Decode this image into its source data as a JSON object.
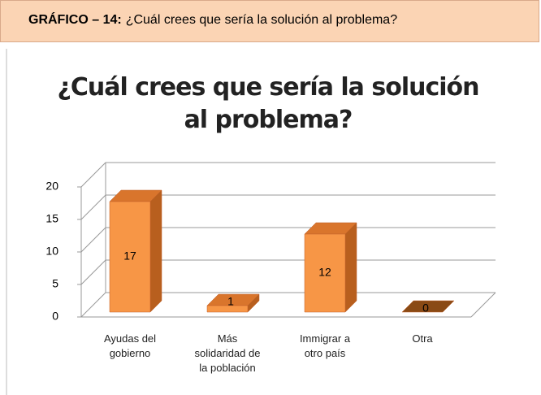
{
  "header": {
    "label": "GRÁFICO – 14:",
    "text": "¿Cuál crees que sería la solución al problema?"
  },
  "chart_data": {
    "type": "bar3d",
    "title": "¿Cuál crees que sería la solución al problema?",
    "categories": [
      "Ayudas del gobierno",
      "Más solidaridad de la población",
      "Immigrar a otro país",
      "Otra"
    ],
    "values": [
      17,
      1,
      12,
      0
    ],
    "color": "#f79646",
    "ylim": [
      0,
      20
    ],
    "yticks": [
      0,
      5,
      10,
      15,
      20
    ],
    "grid": true
  }
}
